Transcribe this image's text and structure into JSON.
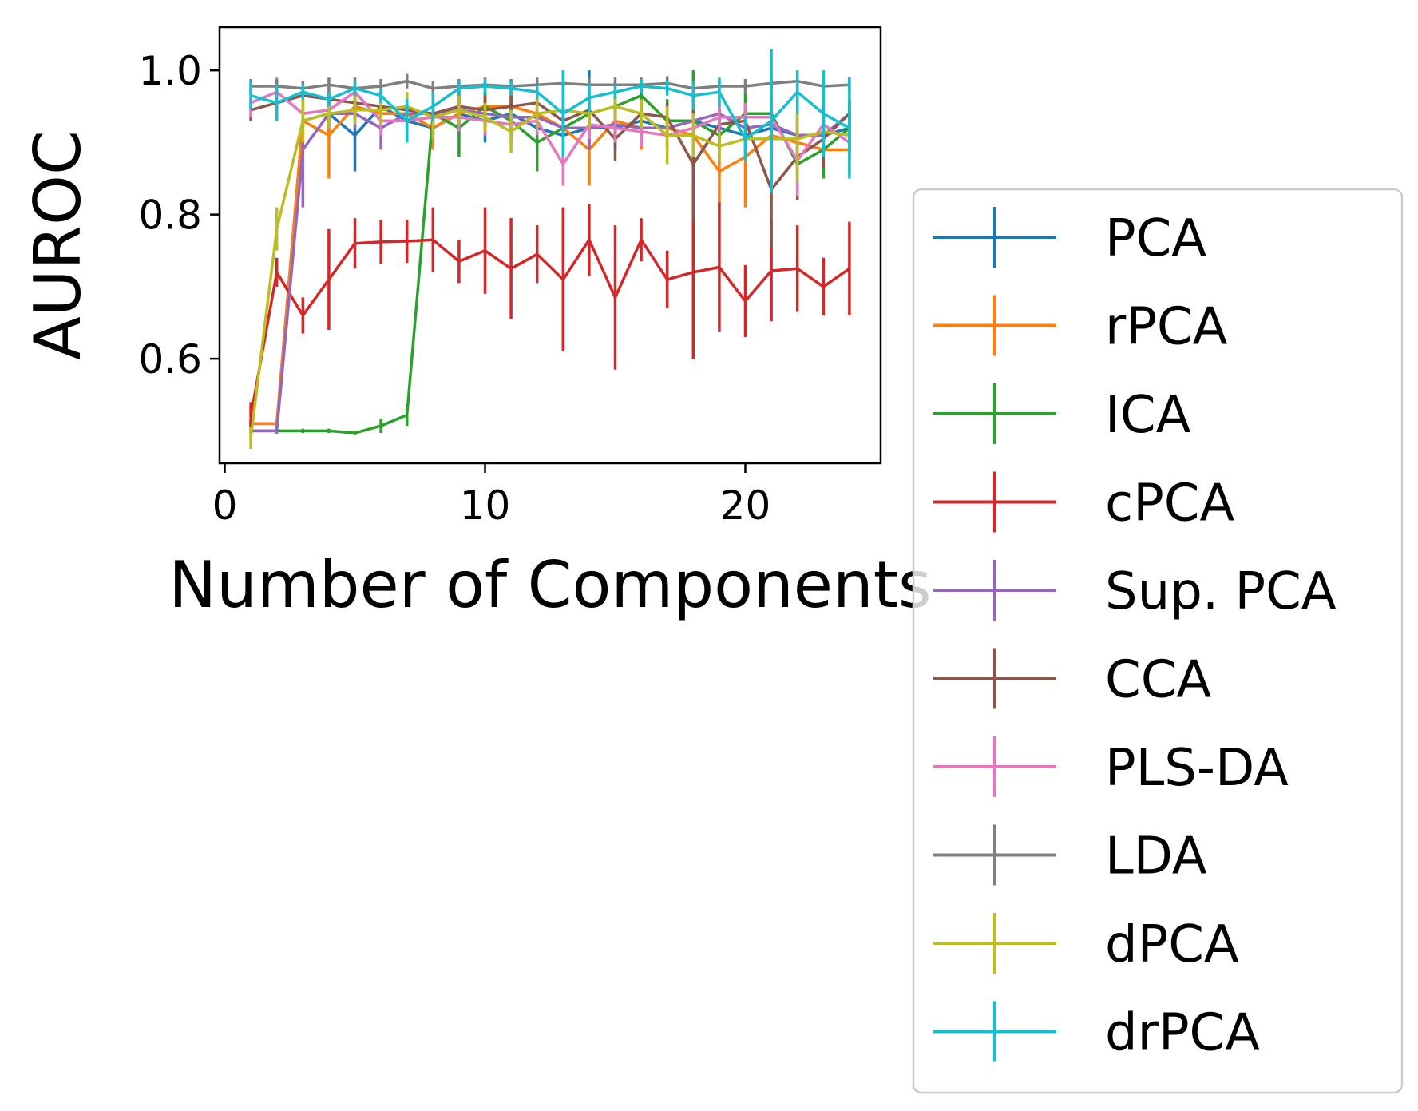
{
  "chart_data": {
    "type": "line",
    "title": "",
    "xlabel": "Number of Components",
    "ylabel": "AUROC",
    "xlim": [
      -0.2,
      25.2
    ],
    "ylim": [
      0.455,
      1.06
    ],
    "xticks": [
      0,
      10,
      20
    ],
    "yticks": [
      0.6,
      0.8,
      1.0
    ],
    "xtick_labels": [
      "0",
      "10",
      "20"
    ],
    "ytick_labels": [
      "0.6",
      "0.8",
      "1.0"
    ],
    "grid": false,
    "legend_position": "lower-right outside axes",
    "x": [
      1,
      2,
      3,
      4,
      5,
      6,
      7,
      8,
      9,
      10,
      11,
      12,
      13,
      14,
      15,
      16,
      17,
      18,
      19,
      20,
      21,
      22,
      23,
      24
    ],
    "series": [
      {
        "name": "PCA",
        "color": "#1f77b4",
        "values": [
          0.51,
          0.51,
          0.93,
          0.94,
          0.91,
          0.95,
          0.93,
          0.92,
          0.94,
          0.93,
          0.94,
          0.92,
          0.91,
          0.92,
          0.92,
          0.93,
          0.92,
          0.93,
          0.92,
          0.91,
          0.92,
          0.91,
          0.91,
          0.92
        ],
        "errors": [
          0.005,
          0.005,
          0.02,
          0.03,
          0.05,
          0.02,
          0.03,
          0.03,
          0.03,
          0.03,
          0.03,
          0.03,
          0.04,
          0.08,
          0.03,
          0.03,
          0.03,
          0.03,
          0.03,
          0.03,
          0.03,
          0.03,
          0.03,
          0.03
        ]
      },
      {
        "name": "rPCA",
        "color": "#ff7f0e",
        "values": [
          0.51,
          0.51,
          0.93,
          0.91,
          0.95,
          0.94,
          0.94,
          0.92,
          0.94,
          0.95,
          0.95,
          0.94,
          0.92,
          0.89,
          0.93,
          0.92,
          0.92,
          0.91,
          0.86,
          0.88,
          0.91,
          0.9,
          0.89,
          0.89
        ],
        "errors": [
          0.005,
          0.005,
          0.03,
          0.06,
          0.02,
          0.02,
          0.03,
          0.03,
          0.02,
          0.02,
          0.02,
          0.02,
          0.03,
          0.05,
          0.03,
          0.03,
          0.03,
          0.04,
          0.05,
          0.07,
          0.04,
          0.04,
          0.03,
          0.03
        ]
      },
      {
        "name": "ICA",
        "color": "#2ca02c",
        "values": [
          0.5,
          0.5,
          0.5,
          0.5,
          0.497,
          0.507,
          0.522,
          0.94,
          0.92,
          0.95,
          0.93,
          0.9,
          0.92,
          0.94,
          0.95,
          0.965,
          0.93,
          0.93,
          0.91,
          0.94,
          0.94,
          0.87,
          0.89,
          0.92
        ],
        "errors": [
          0.005,
          0.003,
          0.003,
          0.003,
          0.003,
          0.01,
          0.015,
          0.03,
          0.04,
          0.03,
          0.03,
          0.04,
          0.03,
          0.03,
          0.02,
          0.02,
          0.03,
          0.07,
          0.03,
          0.03,
          0.03,
          0.03,
          0.04,
          0.04
        ]
      },
      {
        "name": "cPCA",
        "color": "#d62728",
        "values": [
          0.52,
          0.72,
          0.66,
          0.71,
          0.76,
          0.762,
          0.763,
          0.765,
          0.735,
          0.75,
          0.725,
          0.745,
          0.71,
          0.765,
          0.685,
          0.765,
          0.71,
          0.72,
          0.727,
          0.68,
          0.722,
          0.725,
          0.7,
          0.725
        ],
        "errors": [
          0.02,
          0.02,
          0.025,
          0.07,
          0.035,
          0.03,
          0.03,
          0.045,
          0.03,
          0.06,
          0.07,
          0.04,
          0.1,
          0.05,
          0.1,
          0.03,
          0.04,
          0.12,
          0.09,
          0.05,
          0.07,
          0.06,
          0.04,
          0.065
        ]
      },
      {
        "name": "Sup. PCA",
        "color": "#9467bd",
        "values": [
          0.5,
          0.5,
          0.89,
          0.94,
          0.94,
          0.92,
          0.94,
          0.94,
          0.945,
          0.94,
          0.935,
          0.935,
          0.92,
          0.92,
          0.925,
          0.92,
          0.92,
          0.93,
          0.94,
          0.92,
          0.925,
          0.91,
          0.91,
          0.94
        ],
        "errors": [
          0.005,
          0.005,
          0.08,
          0.02,
          0.02,
          0.03,
          0.02,
          0.03,
          0.02,
          0.02,
          0.02,
          0.02,
          0.02,
          0.03,
          0.02,
          0.02,
          0.02,
          0.02,
          0.02,
          0.02,
          0.03,
          0.03,
          0.03,
          0.02
        ]
      },
      {
        "name": "CCA",
        "color": "#8c564b",
        "values": [
          0.945,
          0.955,
          0.965,
          0.96,
          0.955,
          0.95,
          0.945,
          0.94,
          0.95,
          0.945,
          0.95,
          0.955,
          0.93,
          0.945,
          0.905,
          0.94,
          0.935,
          0.87,
          0.925,
          0.93,
          0.835,
          0.88,
          0.905,
          0.94
        ],
        "errors": [
          0.015,
          0.015,
          0.01,
          0.01,
          0.015,
          0.02,
          0.02,
          0.03,
          0.02,
          0.02,
          0.02,
          0.02,
          0.02,
          0.02,
          0.03,
          0.02,
          0.02,
          0.08,
          0.02,
          0.02,
          0.08,
          0.06,
          0.04,
          0.02
        ]
      },
      {
        "name": "PLS-DA",
        "color": "#e377c2",
        "values": [
          0.955,
          0.97,
          0.94,
          0.945,
          0.97,
          0.93,
          0.93,
          0.935,
          0.935,
          0.93,
          0.925,
          0.93,
          0.87,
          0.925,
          0.92,
          0.915,
          0.91,
          0.92,
          0.935,
          0.935,
          0.935,
          0.875,
          0.925,
          0.9
        ],
        "errors": [
          0.02,
          0.02,
          0.02,
          0.02,
          0.01,
          0.02,
          0.02,
          0.03,
          0.02,
          0.02,
          0.02,
          0.02,
          0.03,
          0.02,
          0.02,
          0.02,
          0.02,
          0.02,
          0.02,
          0.02,
          0.02,
          0.05,
          0.02,
          0.02
        ]
      },
      {
        "name": "LDA",
        "color": "#7f7f7f",
        "values": [
          0.978,
          0.978,
          0.975,
          0.98,
          0.975,
          0.978,
          0.985,
          0.975,
          0.978,
          0.98,
          0.978,
          0.98,
          0.982,
          0.98,
          0.98,
          0.98,
          0.982,
          0.975,
          0.978,
          0.978,
          0.982,
          0.985,
          0.978,
          0.98
        ],
        "errors": [
          0.01,
          0.01,
          0.01,
          0.01,
          0.015,
          0.01,
          0.01,
          0.01,
          0.01,
          0.01,
          0.01,
          0.01,
          0.01,
          0.01,
          0.01,
          0.01,
          0.01,
          0.01,
          0.01,
          0.01,
          0.01,
          0.01,
          0.01,
          0.01
        ]
      },
      {
        "name": "dPCA",
        "color": "#bcbd22",
        "values": [
          0.49,
          0.78,
          0.93,
          0.94,
          0.945,
          0.945,
          0.95,
          0.935,
          0.945,
          0.935,
          0.915,
          0.94,
          0.945,
          0.94,
          0.95,
          0.94,
          0.91,
          0.91,
          0.895,
          0.905,
          0.905,
          0.905,
          0.915,
          0.91
        ],
        "errors": [
          0.015,
          0.03,
          0.03,
          0.02,
          0.02,
          0.02,
          0.02,
          0.03,
          0.02,
          0.02,
          0.03,
          0.02,
          0.02,
          0.02,
          0.02,
          0.02,
          0.04,
          0.03,
          0.02,
          0.02,
          0.02,
          0.06,
          0.02,
          0.02
        ]
      },
      {
        "name": "drPCA",
        "color": "#17becf",
        "values": [
          0.965,
          0.955,
          0.97,
          0.96,
          0.975,
          0.965,
          0.93,
          0.95,
          0.975,
          0.978,
          0.975,
          0.97,
          0.94,
          0.962,
          0.97,
          0.978,
          0.975,
          0.965,
          0.97,
          0.905,
          0.93,
          0.97,
          0.94,
          0.92
        ],
        "errors": [
          0.02,
          0.025,
          0.01,
          0.01,
          0.01,
          0.01,
          0.03,
          0.02,
          0.01,
          0.01,
          0.01,
          0.01,
          0.06,
          0.02,
          0.01,
          0.01,
          0.01,
          0.02,
          0.02,
          0.03,
          0.1,
          0.03,
          0.06,
          0.07
        ]
      }
    ]
  }
}
